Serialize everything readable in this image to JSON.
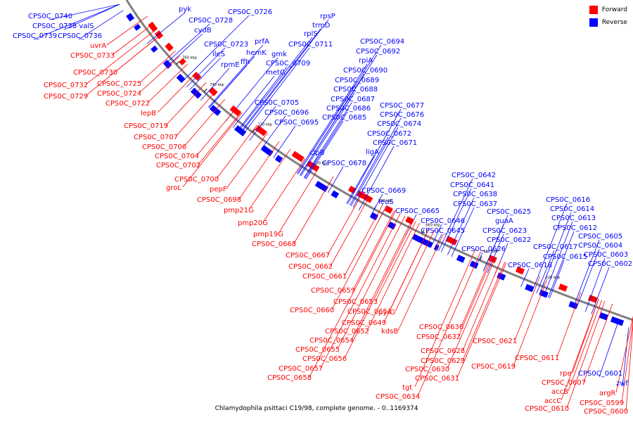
{
  "caption": "Chlamydophila psittaci C19/98, complete genome. - 0..1169374",
  "legend": [
    {
      "label": "Forward",
      "color": "#ff0000"
    },
    {
      "label": "Reverse",
      "color": "#0000ff"
    }
  ],
  "colors": {
    "forward": "#ff0000",
    "reverse": "#0000ff",
    "backbone": "#808080"
  },
  "ticks": [
    "760 kbp",
    "740 kbp",
    "720 kbp",
    "700 kbp",
    "680 kbp",
    "660 kbp",
    "640 kbp",
    "620 kbp"
  ],
  "labels": [
    {
      "t": "CPS0C_0740",
      "s": "r"
    },
    {
      "t": "pyk",
      "s": "r"
    },
    {
      "t": "CPS0C_0726",
      "s": "r"
    },
    {
      "t": "CPS0C_0738 valS",
      "s": "r"
    },
    {
      "t": "CPS0C_0728",
      "s": "r"
    },
    {
      "t": "rpsP",
      "s": "r"
    },
    {
      "t": "CPS0C_0739",
      "s": "r"
    },
    {
      "t": "CPS0C_0736",
      "s": "r"
    },
    {
      "t": "cydB",
      "s": "r"
    },
    {
      "t": "trmD",
      "s": "r"
    },
    {
      "t": "rplS",
      "s": "r"
    },
    {
      "t": "CPS0C_0723",
      "s": "r"
    },
    {
      "t": "prfA",
      "s": "r"
    },
    {
      "t": "CPS0C_0711",
      "s": "r"
    },
    {
      "t": "ileS",
      "s": "r"
    },
    {
      "t": "hemK",
      "s": "r"
    },
    {
      "t": "gmk",
      "s": "r"
    },
    {
      "t": "ffh",
      "s": "r"
    },
    {
      "t": "rpmE",
      "s": "r"
    },
    {
      "t": "CPS0C_0709",
      "s": "r"
    },
    {
      "t": "metG",
      "s": "r"
    },
    {
      "t": "CPS0C_0694",
      "s": "r"
    },
    {
      "t": "CPS0C_0692",
      "s": "r"
    },
    {
      "t": "rpiA",
      "s": "r"
    },
    {
      "t": "CPS0C_0690",
      "s": "r"
    },
    {
      "t": "CPS0C_0689",
      "s": "r"
    },
    {
      "t": "CPS0C_0688",
      "s": "r"
    },
    {
      "t": "CPS0C_0687",
      "s": "r"
    },
    {
      "t": "CPS0C_0705",
      "s": "r"
    },
    {
      "t": "CPS0C_0686",
      "s": "r"
    },
    {
      "t": "CPS0C_0677",
      "s": "r"
    },
    {
      "t": "CPS0C_0696",
      "s": "r"
    },
    {
      "t": "CPS0C_0685",
      "s": "r"
    },
    {
      "t": "CPS0C_0676",
      "s": "r"
    },
    {
      "t": "CPS0C_0695",
      "s": "r"
    },
    {
      "t": "CPS0C_0674",
      "s": "r"
    },
    {
      "t": "CPS0C_0672",
      "s": "r"
    },
    {
      "t": "CPS0C_0671",
      "s": "r"
    },
    {
      "t": "clpB",
      "s": "r"
    },
    {
      "t": "ligA",
      "s": "r"
    },
    {
      "t": "CPS0C_0678",
      "s": "r"
    },
    {
      "t": "CPS0C_0642",
      "s": "r"
    },
    {
      "t": "CPS0C_0641",
      "s": "r"
    },
    {
      "t": "CPS0C_0669",
      "s": "r"
    },
    {
      "t": "CPS0C_0638",
      "s": "r"
    },
    {
      "t": "CPS0C_0616",
      "s": "r"
    },
    {
      "t": "leuS",
      "s": "r"
    },
    {
      "t": "CPS0C_0637",
      "s": "r"
    },
    {
      "t": "CPS0C_0614",
      "s": "r"
    },
    {
      "t": "CPS0C_0665",
      "s": "r"
    },
    {
      "t": "CPS0C_0625",
      "s": "r"
    },
    {
      "t": "CPS0C_0646",
      "s": "r"
    },
    {
      "t": "guaA",
      "s": "r"
    },
    {
      "t": "CPS0C_0613",
      "s": "r"
    },
    {
      "t": "CPS0C_0612",
      "s": "r"
    },
    {
      "t": "CPS0C_0645",
      "s": "r"
    },
    {
      "t": "CPS0C_0623",
      "s": "r"
    },
    {
      "t": "CPS0C_0605",
      "s": "r"
    },
    {
      "t": "CPS0C_0622",
      "s": "r"
    },
    {
      "t": "CPS0C_0617",
      "s": "r"
    },
    {
      "t": "CPS0C_0604",
      "s": "r"
    },
    {
      "t": "CPS0C_0626",
      "s": "r"
    },
    {
      "t": "CPS0C_0615",
      "s": "r"
    },
    {
      "t": "CPS0C_0603",
      "s": "r"
    },
    {
      "t": "CPS0C_0618",
      "s": "r"
    },
    {
      "t": "CPS0C_0602",
      "s": "r"
    },
    {
      "t": "CPS0C_0601",
      "s": "r"
    },
    {
      "t": "zwf",
      "s": "r"
    },
    {
      "t": "uvrA",
      "s": "f"
    },
    {
      "t": "CPS0C_0733",
      "s": "f"
    },
    {
      "t": "CPS0C_0730",
      "s": "f"
    },
    {
      "t": "CPS0C_0732",
      "s": "f"
    },
    {
      "t": "CPS0C_0725",
      "s": "f"
    },
    {
      "t": "CPS0C_0729",
      "s": "f"
    },
    {
      "t": "CPS0C_0724",
      "s": "f"
    },
    {
      "t": "CPS0C_0722",
      "s": "f"
    },
    {
      "t": "lepB",
      "s": "f"
    },
    {
      "t": "CPS0C_0719",
      "s": "f"
    },
    {
      "t": "CPS0C_0707",
      "s": "f"
    },
    {
      "t": "CPS0C_0706",
      "s": "f"
    },
    {
      "t": "CPS0C_0704",
      "s": "f"
    },
    {
      "t": "CPS0C_0702",
      "s": "f"
    },
    {
      "t": "CPS0C_0700",
      "s": "f"
    },
    {
      "t": "groL",
      "s": "f"
    },
    {
      "t": "pepF",
      "s": "f"
    },
    {
      "t": "CPS0C_0698",
      "s": "f"
    },
    {
      "t": "pmp21G",
      "s": "f"
    },
    {
      "t": "pmp20G",
      "s": "f"
    },
    {
      "t": "pmp19G",
      "s": "f"
    },
    {
      "t": "CPS0C_0668",
      "s": "f"
    },
    {
      "t": "CPS0C_0667",
      "s": "f"
    },
    {
      "t": "CPS0C_0662",
      "s": "f"
    },
    {
      "t": "CPS0C_0661",
      "s": "f"
    },
    {
      "t": "CPS0C_0659",
      "s": "f"
    },
    {
      "t": "CPS0C_0653",
      "s": "f"
    },
    {
      "t": "CPS0C_0660",
      "s": "f"
    },
    {
      "t": "CPS0C_0651",
      "s": "f"
    },
    {
      "t": "pyrG",
      "s": "f"
    },
    {
      "t": "CPS0C_0649",
      "s": "f"
    },
    {
      "t": "kdsB",
      "s": "f"
    },
    {
      "t": "CPS0C_0652",
      "s": "f"
    },
    {
      "t": "CPS0C_0636",
      "s": "f"
    },
    {
      "t": "CPS0C_0632",
      "s": "f"
    },
    {
      "t": "CPS0C_0654",
      "s": "f"
    },
    {
      "t": "CPS0C_0621",
      "s": "f"
    },
    {
      "t": "CPS0C_0655",
      "s": "f"
    },
    {
      "t": "CPS0C_0628",
      "s": "f"
    },
    {
      "t": "CPS0C_0656",
      "s": "f"
    },
    {
      "t": "CPS0C_0629",
      "s": "f"
    },
    {
      "t": "CPS0C_0619",
      "s": "f"
    },
    {
      "t": "CPS0C_0611",
      "s": "f"
    },
    {
      "t": "CPS0C_0657",
      "s": "f"
    },
    {
      "t": "CPS0C_0630",
      "s": "f"
    },
    {
      "t": "rpe",
      "s": "f"
    },
    {
      "t": "CPS0C_0658",
      "s": "f"
    },
    {
      "t": "CPS0C_0631",
      "s": "f"
    },
    {
      "t": "CPS0C_0607",
      "s": "f"
    },
    {
      "t": "tgt",
      "s": "f"
    },
    {
      "t": "accB",
      "s": "f"
    },
    {
      "t": "argR",
      "s": "f"
    },
    {
      "t": "CPS0C_0634",
      "s": "f"
    },
    {
      "t": "accC",
      "s": "f"
    },
    {
      "t": "CPS0C_0599",
      "s": "f"
    },
    {
      "t": "CPS0C_0610",
      "s": "f"
    },
    {
      "t": "CPS0C_0600",
      "s": "f"
    }
  ]
}
